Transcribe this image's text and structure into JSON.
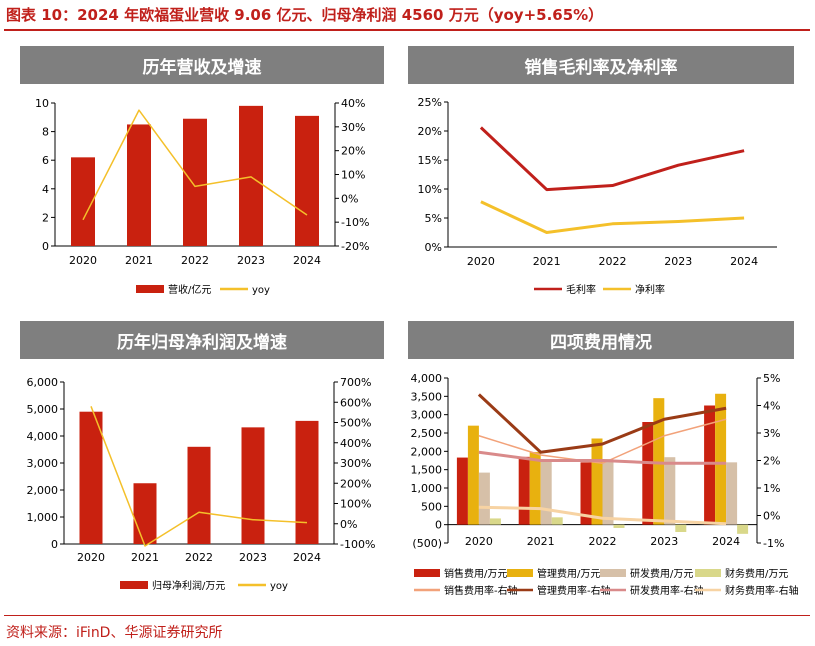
{
  "page": {
    "title": "图表 10：2024 年欧福蛋业营收 9.06 亿元、归母净利润 4560 万元（yoy+5.65%）",
    "source": "资料来源：iFinD、华源证券研究所"
  },
  "colors": {
    "bar_red": "#c9210f",
    "line_yellow": "#f4c02a",
    "line_darkred": "#c0201b",
    "header_gray": "#7f7f7f",
    "bar_gold": "#e8b10f",
    "bar_tan": "#d6c0a8",
    "bar_palegreen": "#d9d88a",
    "line_salmon": "#f2a27a",
    "line_brown": "#9a3b16",
    "line_pink": "#d98a8a",
    "line_peach": "#f7d3a3"
  },
  "chart_data": [
    {
      "panel_title": "历年营收及增速",
      "type": "bar",
      "categories": [
        "2020",
        "2021",
        "2022",
        "2023",
        "2024"
      ],
      "series": [
        {
          "name": "营收/亿元",
          "type": "bar",
          "axis": "left",
          "values": [
            6.2,
            8.5,
            8.9,
            9.8,
            9.1
          ]
        },
        {
          "name": "yoy",
          "type": "line",
          "axis": "right",
          "values": [
            -0.09,
            0.37,
            0.05,
            0.09,
            -0.07
          ]
        }
      ],
      "ylim": [
        0,
        10
      ],
      "yticks": [
        0,
        2,
        4,
        6,
        8,
        10
      ],
      "ytick_labels": [
        "0",
        "2",
        "4",
        "6",
        "8",
        "10"
      ],
      "y2lim": [
        -0.2,
        0.4
      ],
      "y2ticks": [
        -0.2,
        -0.1,
        0,
        0.1,
        0.2,
        0.3,
        0.4
      ],
      "y2tick_labels": [
        "-20%",
        "-10%",
        "0%",
        "10%",
        "20%",
        "30%",
        "40%"
      ],
      "legend": "bottom"
    },
    {
      "panel_title": "销售毛利率及净利率",
      "type": "line",
      "categories": [
        "2020",
        "2021",
        "2022",
        "2023",
        "2024"
      ],
      "series": [
        {
          "name": "毛利率",
          "type": "line",
          "axis": "left",
          "values": [
            0.206,
            0.099,
            0.106,
            0.141,
            0.166
          ]
        },
        {
          "name": "净利率",
          "type": "line",
          "axis": "left",
          "values": [
            0.078,
            0.025,
            0.04,
            0.044,
            0.05
          ]
        }
      ],
      "ylim": [
        0,
        0.25
      ],
      "yticks": [
        0,
        0.05,
        0.1,
        0.15,
        0.2,
        0.25
      ],
      "ytick_labels": [
        "0%",
        "5%",
        "10%",
        "15%",
        "20%",
        "25%"
      ],
      "legend": "bottom"
    },
    {
      "panel_title": "历年归母净利润及增速",
      "type": "bar",
      "categories": [
        "2020",
        "2021",
        "2022",
        "2023",
        "2024"
      ],
      "series": [
        {
          "name": "归母净利润/万元",
          "type": "bar",
          "axis": "left",
          "values": [
            4900,
            2250,
            3600,
            4320,
            4560
          ]
        },
        {
          "name": "yoy",
          "type": "line",
          "axis": "right",
          "values": [
            5.8,
            -1.1,
            0.57,
            0.2,
            0.057
          ]
        }
      ],
      "ylim": [
        0,
        6000
      ],
      "yticks": [
        0,
        1000,
        2000,
        3000,
        4000,
        5000,
        6000
      ],
      "ytick_labels": [
        "0",
        "1,000",
        "2,000",
        "3,000",
        "4,000",
        "5,000",
        "6,000"
      ],
      "y2lim": [
        -1,
        7
      ],
      "y2ticks": [
        -1,
        0,
        1,
        2,
        3,
        4,
        5,
        6,
        7
      ],
      "y2tick_labels": [
        "-100%",
        "0%",
        "100%",
        "200%",
        "300%",
        "400%",
        "500%",
        "600%",
        "700%"
      ],
      "legend": "bottom"
    },
    {
      "panel_title": "四项费用情况",
      "type": "bar",
      "categories": [
        "2020",
        "2021",
        "2022",
        "2023",
        "2024"
      ],
      "series": [
        {
          "name": "销售费用/万元",
          "type": "bar",
          "axis": "left",
          "values": [
            1830,
            1850,
            1700,
            2800,
            3250
          ]
        },
        {
          "name": "管理费用/万元",
          "type": "bar",
          "axis": "left",
          "values": [
            2700,
            1980,
            2350,
            3450,
            3570
          ]
        },
        {
          "name": "研发费用/万元",
          "type": "bar",
          "axis": "left",
          "values": [
            1420,
            1770,
            1790,
            1840,
            1700
          ]
        },
        {
          "name": "财务费用/万元",
          "type": "bar",
          "axis": "left",
          "values": [
            170,
            200,
            -90,
            -200,
            -250
          ]
        },
        {
          "name": "销售费用率-右轴",
          "type": "line",
          "axis": "right",
          "values": [
            0.029,
            0.022,
            0.019,
            0.029,
            0.035
          ]
        },
        {
          "name": "管理费用率-右轴",
          "type": "line",
          "axis": "right",
          "values": [
            0.044,
            0.023,
            0.026,
            0.035,
            0.039
          ]
        },
        {
          "name": "研发费用率-右轴",
          "type": "line",
          "axis": "right",
          "values": [
            0.023,
            0.02,
            0.02,
            0.019,
            0.019
          ]
        },
        {
          "name": "财务费用率-右轴",
          "type": "line",
          "axis": "right",
          "values": [
            0.003,
            0.0025,
            -0.001,
            -0.002,
            -0.003
          ]
        }
      ],
      "ylim": [
        -500,
        4000
      ],
      "yticks": [
        -500,
        0,
        500,
        1000,
        1500,
        2000,
        2500,
        3000,
        3500,
        4000
      ],
      "ytick_labels": [
        "(500)",
        "0",
        "500",
        "1,000",
        "1,500",
        "2,000",
        "2,500",
        "3,000",
        "3,500",
        "4,000"
      ],
      "y2lim": [
        -0.01,
        0.05
      ],
      "y2ticks": [
        -0.01,
        0,
        0.01,
        0.02,
        0.03,
        0.04,
        0.05
      ],
      "y2tick_labels": [
        "-1%",
        "0%",
        "1%",
        "2%",
        "3%",
        "4%",
        "5%"
      ],
      "legend": "bottom"
    }
  ]
}
